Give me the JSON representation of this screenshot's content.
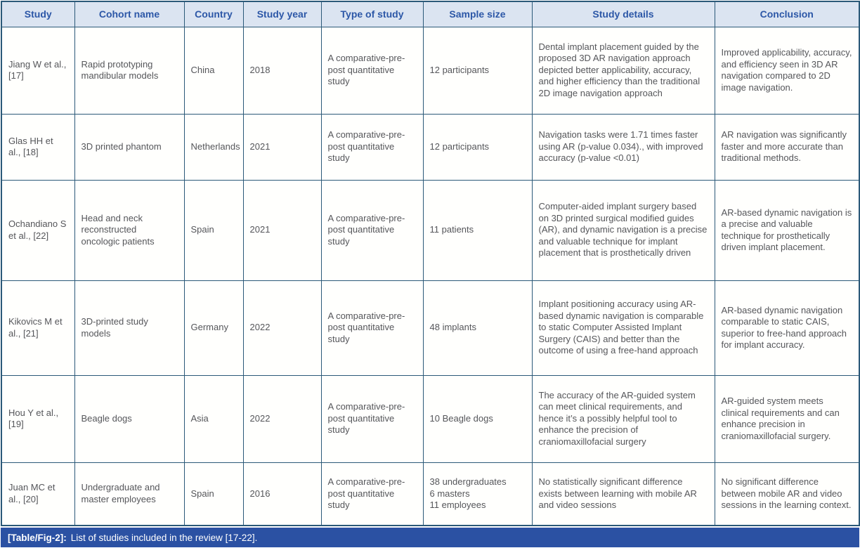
{
  "table": {
    "columns": [
      {
        "key": "study",
        "label": "Study"
      },
      {
        "key": "cohort",
        "label": "Cohort name"
      },
      {
        "key": "country",
        "label": "Country"
      },
      {
        "key": "year",
        "label": "Study year"
      },
      {
        "key": "type",
        "label": "Type of study"
      },
      {
        "key": "sample",
        "label": "Sample size"
      },
      {
        "key": "details",
        "label": "Study details"
      },
      {
        "key": "conclusion",
        "label": "Conclusion"
      }
    ],
    "rows": [
      {
        "study": "Jiang W et al., [17]",
        "cohort": "Rapid prototyping mandibular models",
        "country": "China",
        "year": "2018",
        "type": "A comparative-pre-post quantitative study",
        "sample": "12 participants",
        "details": "Dental implant placement guided by the proposed 3D AR navigation approach depicted better applicability, accuracy, and higher efficiency than the traditional 2D image navigation approach",
        "conclusion": "Improved applicability, accuracy, and efficiency seen in 3D AR navigation compared to 2D image navigation."
      },
      {
        "study": "Glas HH et al., [18]",
        "cohort": "3D printed phantom",
        "country": "Netherlands",
        "year": "2021",
        "type": "A comparative-pre-post quantitative study",
        "sample": "12 participants",
        "details": "Navigation tasks were 1.71 times faster using AR (p-value 0.034)., with improved accuracy (p-value <0.01)",
        "conclusion": "AR navigation was significantly faster and more accurate than traditional methods."
      },
      {
        "study": "Ochandiano S et al., [22]",
        "cohort": "Head and neck reconstructed oncologic patients",
        "country": "Spain",
        "year": "2021",
        "type": "A comparative-pre-post quantitative study",
        "sample": "11 patients",
        "details": "Computer-aided implant surgery based on 3D printed surgical modified guides (AR), and dynamic navigation is a precise and valuable technique for implant placement that is prosthetically driven",
        "conclusion": "AR-based dynamic navigation is a precise and valuable technique for prosthetically driven implant placement."
      },
      {
        "study": "Kikovics M et al., [21]",
        "cohort": "3D-printed study models",
        "country": "Germany",
        "year": "2022",
        "type": "A comparative-pre-post quantitative study",
        "sample": "48 implants",
        "details": "Implant positioning accuracy using AR-based dynamic navigation is comparable to static Computer Assisted Implant Surgery (CAIS) and better than the outcome of using a free-hand approach",
        "conclusion": "AR-based dynamic navigation comparable to static CAIS, superior to free-hand approach for implant accuracy."
      },
      {
        "study": "Hou Y et al., [19]",
        "cohort": "Beagle dogs",
        "country": "Asia",
        "year": "2022",
        "type": "A comparative-pre-post quantitative study",
        "sample": "10 Beagle dogs",
        "details": "The accuracy of the AR-guided system can meet clinical requirements, and hence it’s a possibly helpful tool to enhance the precision of craniomaxillofacial surgery",
        "conclusion": "AR-guided system meets clinical requirements and can enhance precision in craniomaxillofacial surgery."
      },
      {
        "study": "Juan MC et al., [20]",
        "cohort": "Undergraduate and master employees",
        "country": "Spain",
        "year": "2016",
        "type": "A comparative-pre-post quantitative study",
        "sample": "38 undergraduates\n6 masters\n11 employees",
        "details": "No statistically significant difference exists between learning with mobile AR and video sessions",
        "conclusion": "No significant difference between mobile AR and video sessions in the learning context."
      }
    ],
    "caption_label": "[Table/Fig-2]:",
    "caption_text": "List of studies included in the review [17-22]."
  },
  "colors": {
    "border": "#2b5978",
    "header_bg": "#dbe4f1",
    "header_text": "#2c57a7",
    "body_text": "#55565a",
    "caption_bg": "#2b51a3",
    "caption_text": "#ffffff"
  }
}
